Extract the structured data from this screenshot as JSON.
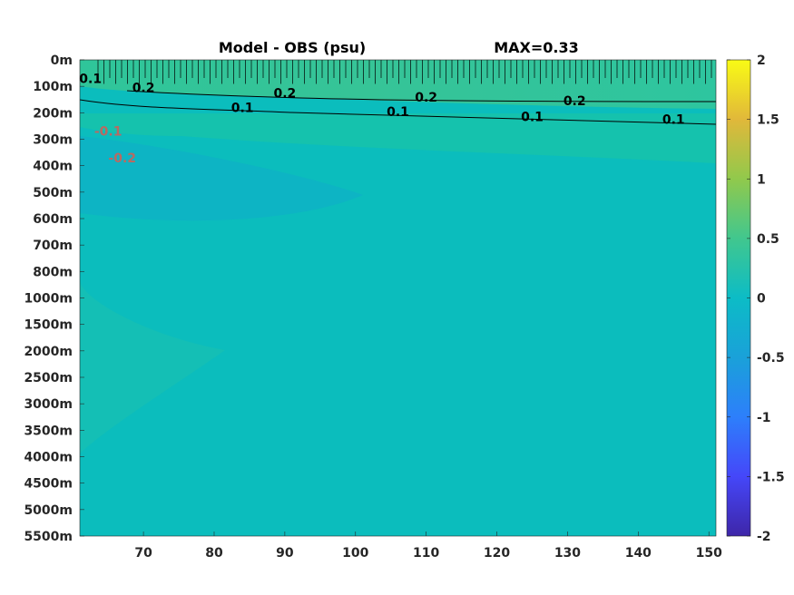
{
  "chart_data": {
    "type": "heatmap",
    "title": "Model - OBS (psu)",
    "max_label": "MAX=0.33",
    "xlabel": "",
    "ylabel": "",
    "xlim": [
      61,
      151
    ],
    "x_ticks": [
      70,
      80,
      90,
      100,
      110,
      120,
      130,
      140,
      150
    ],
    "x_tick_labels": [
      "70",
      "80",
      "90",
      "100",
      "110",
      "120",
      "130",
      "140",
      "150"
    ],
    "y_tick_labels": [
      "0m",
      "100m",
      "200m",
      "300m",
      "400m",
      "500m",
      "600m",
      "700m",
      "800m",
      "1000m",
      "1500m",
      "2000m",
      "2500m",
      "3000m",
      "3500m",
      "4000m",
      "4500m",
      "5000m",
      "5500m"
    ],
    "y_scale": "categorical (nonlinear depth levels)",
    "colorbar": {
      "colormap": "parula",
      "range": [
        -2,
        2
      ],
      "ticks": [
        2,
        1.5,
        1,
        0.5,
        0,
        -0.5,
        -1,
        -1.5,
        -2
      ],
      "tick_labels": [
        "2",
        "1.5",
        "1",
        "0.5",
        "0",
        "-0.5",
        "-1",
        "-1.5",
        "-2"
      ]
    },
    "contours": [
      {
        "level": 0.2,
        "label": "0.2",
        "color": "#000000",
        "depth_m": 120
      },
      {
        "level": 0.1,
        "label": "0.1",
        "color": "#000000",
        "depth_m": 190
      },
      {
        "level": -0.1,
        "label": "-0.1",
        "color": "#b86a62",
        "depth_m": 300
      },
      {
        "level": -0.2,
        "label": "-0.2",
        "color": "#b86a62",
        "depth_m": 400
      }
    ],
    "contour_labels": [
      {
        "text": "0.1",
        "x": 62.5,
        "depth_m": 80,
        "color": "#000000"
      },
      {
        "text": "0.2",
        "x": 70,
        "depth_m": 115,
        "color": "#000000"
      },
      {
        "text": "0.2",
        "x": 90,
        "depth_m": 135,
        "color": "#000000"
      },
      {
        "text": "0.2",
        "x": 110,
        "depth_m": 150,
        "color": "#000000"
      },
      {
        "text": "0.2",
        "x": 131,
        "depth_m": 165,
        "color": "#000000"
      },
      {
        "text": "0.1",
        "x": 84,
        "depth_m": 190,
        "color": "#000000"
      },
      {
        "text": "0.1",
        "x": 106,
        "depth_m": 205,
        "color": "#000000"
      },
      {
        "text": "0.1",
        "x": 125,
        "depth_m": 225,
        "color": "#000000"
      },
      {
        "text": "0.1",
        "x": 145,
        "depth_m": 235,
        "color": "#000000"
      },
      {
        "text": "-0.1",
        "x": 65,
        "depth_m": 280,
        "color": "#b86a62"
      },
      {
        "text": "-0.2",
        "x": 67,
        "depth_m": 380,
        "color": "#b86a62"
      }
    ],
    "field_description": [
      {
        "region": "surface 0-200m",
        "value_approx": 0.2
      },
      {
        "region": "200-300m",
        "value_approx": 0.1
      },
      {
        "region": "west 300-600m",
        "value_approx": -0.2
      },
      {
        "region": "deep west 1000-4000m",
        "value_approx": 0.05
      },
      {
        "region": "remainder",
        "value_approx": 0.0
      }
    ]
  }
}
